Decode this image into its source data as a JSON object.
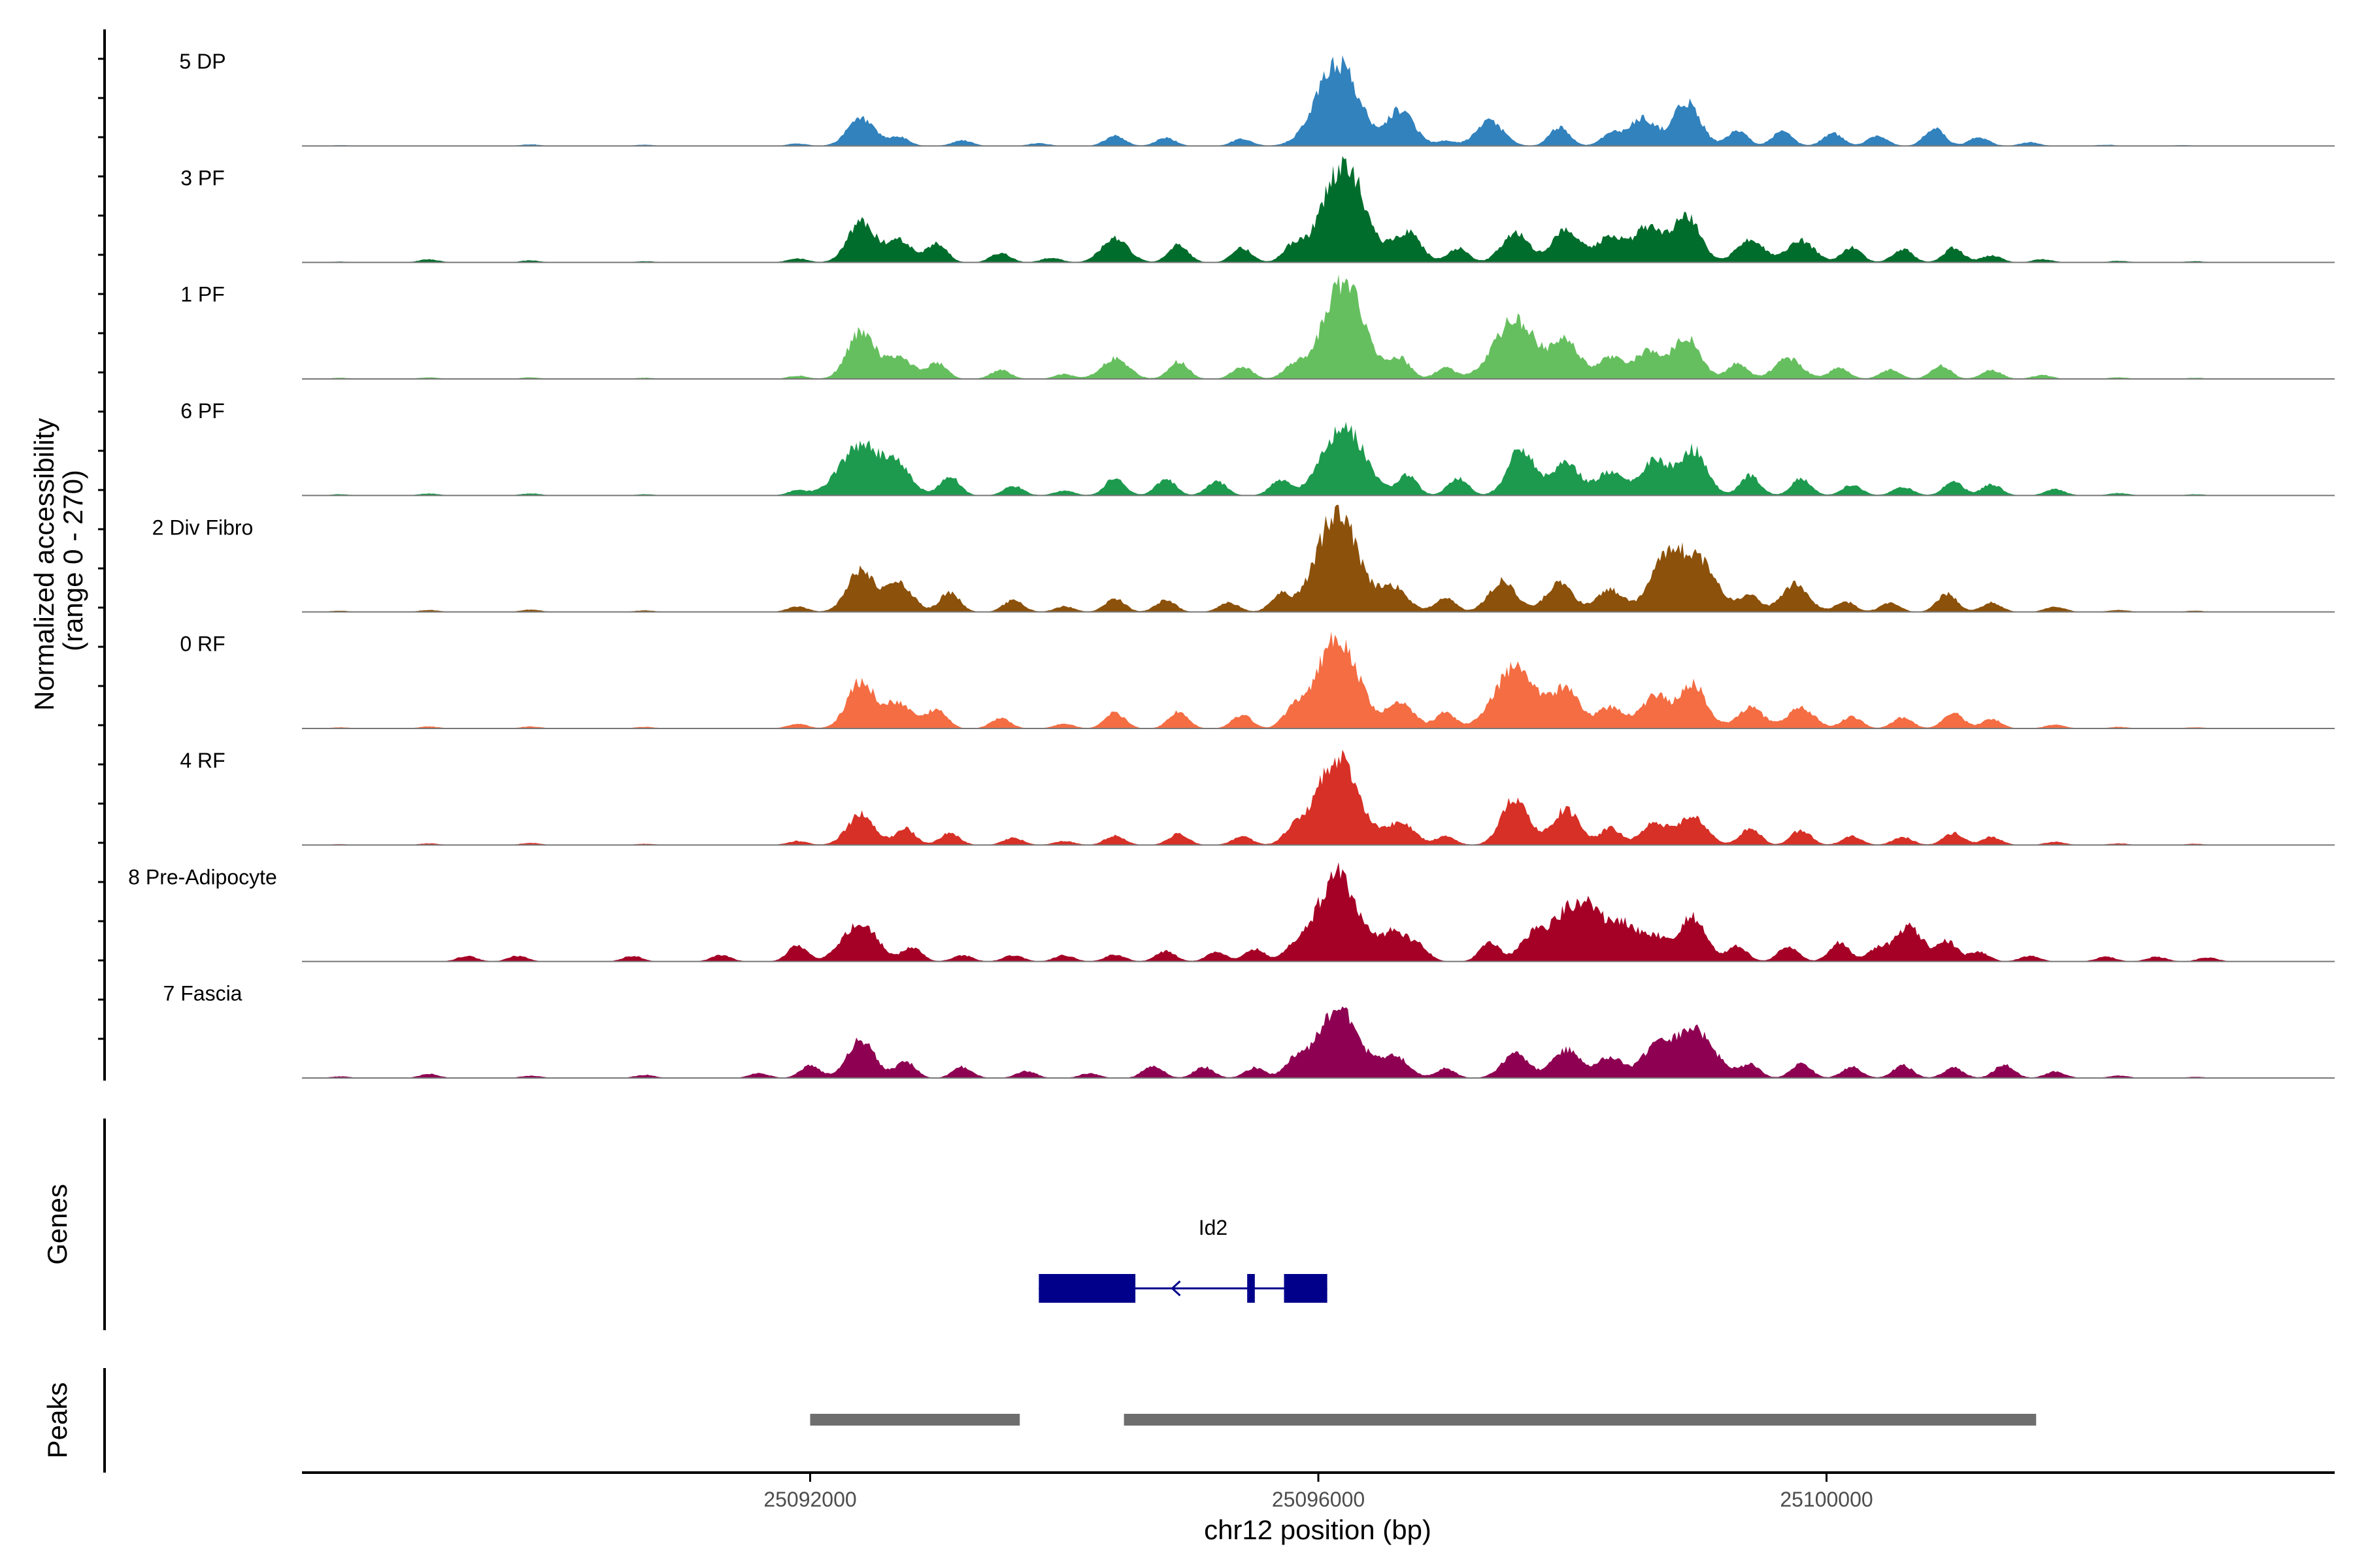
{
  "chart_data": {
    "type": "area",
    "title": "",
    "region": {
      "chromosome": "chr12",
      "start": 25088000,
      "end": 25104000
    },
    "xlabel": "chr12 position (bp)",
    "ylabel_line1": "Normalized accessibility",
    "ylabel_line2": "(range 0 - 270)",
    "ylim": [
      0,
      270
    ],
    "x_ticks": [
      {
        "value": 25092000,
        "label": "25092000"
      },
      {
        "value": 25096000,
        "label": "25096000"
      },
      {
        "value": 25100000,
        "label": "25100000"
      }
    ],
    "tracks": [
      {
        "name": "5 DP",
        "color": "#3182BD",
        "peaks": [
          [
            25088300,
            2
          ],
          [
            25089800,
            4
          ],
          [
            25090700,
            3
          ],
          [
            25091900,
            6
          ],
          [
            25092400,
            68
          ],
          [
            25092700,
            22
          ],
          [
            25093200,
            14
          ],
          [
            25093800,
            7
          ],
          [
            25094400,
            26
          ],
          [
            25094800,
            20
          ],
          [
            25095400,
            18
          ],
          [
            25096150,
            210
          ],
          [
            25096650,
            90
          ],
          [
            25097000,
            12
          ],
          [
            25097350,
            62
          ],
          [
            25097900,
            48
          ],
          [
            25098300,
            30
          ],
          [
            25098550,
            70
          ],
          [
            25098900,
            110
          ],
          [
            25099300,
            38
          ],
          [
            25099650,
            36
          ],
          [
            25100050,
            32
          ],
          [
            25100400,
            26
          ],
          [
            25100850,
            44
          ],
          [
            25101200,
            22
          ],
          [
            25101600,
            9
          ],
          [
            25102200,
            3
          ],
          [
            25102800,
            2
          ]
        ]
      },
      {
        "name": "3 PF",
        "color": "#006D2C",
        "peaks": [
          [
            25088300,
            2
          ],
          [
            25089000,
            8
          ],
          [
            25089800,
            5
          ],
          [
            25090700,
            3
          ],
          [
            25091900,
            10
          ],
          [
            25092400,
            100
          ],
          [
            25092700,
            55
          ],
          [
            25093000,
            48
          ],
          [
            25093500,
            24
          ],
          [
            25093900,
            12
          ],
          [
            25094400,
            60
          ],
          [
            25094900,
            44
          ],
          [
            25095400,
            36
          ],
          [
            25095800,
            40
          ],
          [
            25096200,
            250
          ],
          [
            25096700,
            75
          ],
          [
            25097100,
            36
          ],
          [
            25097550,
            75
          ],
          [
            25097950,
            85
          ],
          [
            25098300,
            65
          ],
          [
            25098600,
            90
          ],
          [
            25098900,
            120
          ],
          [
            25099400,
            60
          ],
          [
            25099800,
            55
          ],
          [
            25100200,
            38
          ],
          [
            25100600,
            34
          ],
          [
            25101000,
            36
          ],
          [
            25101300,
            18
          ],
          [
            25101700,
            8
          ],
          [
            25102300,
            4
          ],
          [
            25102900,
            3
          ]
        ]
      },
      {
        "name": "1 PF",
        "color": "#66BF5F",
        "peaks": [
          [
            25088300,
            3
          ],
          [
            25089000,
            4
          ],
          [
            25089800,
            4
          ],
          [
            25090700,
            3
          ],
          [
            25091900,
            8
          ],
          [
            25092400,
            118
          ],
          [
            25092700,
            56
          ],
          [
            25093000,
            40
          ],
          [
            25093500,
            22
          ],
          [
            25094000,
            12
          ],
          [
            25094400,
            52
          ],
          [
            25094900,
            44
          ],
          [
            25095400,
            32
          ],
          [
            25095800,
            30
          ],
          [
            25096200,
            240
          ],
          [
            25096650,
            48
          ],
          [
            25097000,
            28
          ],
          [
            25097550,
            150
          ],
          [
            25097950,
            90
          ],
          [
            25098300,
            52
          ],
          [
            25098600,
            68
          ],
          [
            25098900,
            105
          ],
          [
            25099300,
            40
          ],
          [
            25099700,
            52
          ],
          [
            25100100,
            28
          ],
          [
            25100500,
            24
          ],
          [
            25100900,
            34
          ],
          [
            25101300,
            22
          ],
          [
            25101700,
            10
          ],
          [
            25102300,
            4
          ],
          [
            25102900,
            3
          ]
        ]
      },
      {
        "name": "6 PF",
        "color": "#1D9A4E",
        "peaks": [
          [
            25088300,
            3
          ],
          [
            25089000,
            5
          ],
          [
            25089800,
            5
          ],
          [
            25090700,
            3
          ],
          [
            25091900,
            12
          ],
          [
            25092400,
            128
          ],
          [
            25092700,
            60
          ],
          [
            25093100,
            48
          ],
          [
            25093600,
            24
          ],
          [
            25094000,
            12
          ],
          [
            25094400,
            44
          ],
          [
            25094800,
            40
          ],
          [
            25095200,
            36
          ],
          [
            25095700,
            38
          ],
          [
            25096200,
            175
          ],
          [
            25096700,
            50
          ],
          [
            25097100,
            45
          ],
          [
            25097600,
            118
          ],
          [
            25097950,
            82
          ],
          [
            25098300,
            60
          ],
          [
            25098650,
            92
          ],
          [
            25098950,
            115
          ],
          [
            25099400,
            50
          ],
          [
            25099800,
            42
          ],
          [
            25100200,
            26
          ],
          [
            25100600,
            22
          ],
          [
            25101000,
            34
          ],
          [
            25101300,
            28
          ],
          [
            25101800,
            16
          ],
          [
            25102300,
            6
          ],
          [
            25102900,
            3
          ]
        ]
      },
      {
        "name": "2 Div Fibro",
        "color": "#8C510A",
        "peaks": [
          [
            25088300,
            3
          ],
          [
            25089000,
            5
          ],
          [
            25089800,
            6
          ],
          [
            25090700,
            4
          ],
          [
            25091900,
            14
          ],
          [
            25092400,
            105
          ],
          [
            25092700,
            70
          ],
          [
            25093100,
            50
          ],
          [
            25093600,
            30
          ],
          [
            25094000,
            14
          ],
          [
            25094400,
            34
          ],
          [
            25094800,
            30
          ],
          [
            25095300,
            24
          ],
          [
            25095700,
            42
          ],
          [
            25096150,
            250
          ],
          [
            25096600,
            60
          ],
          [
            25097000,
            38
          ],
          [
            25097450,
            78
          ],
          [
            25097900,
            72
          ],
          [
            25098300,
            55
          ],
          [
            25098700,
            95
          ],
          [
            25098950,
            145
          ],
          [
            25099400,
            40
          ],
          [
            25099750,
            70
          ],
          [
            25100150,
            26
          ],
          [
            25100500,
            22
          ],
          [
            25100950,
            46
          ],
          [
            25101300,
            24
          ],
          [
            25101800,
            14
          ],
          [
            25102300,
            5
          ],
          [
            25102900,
            3
          ]
        ]
      },
      {
        "name": "0 RF",
        "color": "#F46D43",
        "peaks": [
          [
            25088300,
            3
          ],
          [
            25089000,
            5
          ],
          [
            25089800,
            5
          ],
          [
            25090700,
            4
          ],
          [
            25091900,
            12
          ],
          [
            25092400,
            118
          ],
          [
            25092700,
            66
          ],
          [
            25093000,
            50
          ],
          [
            25093500,
            26
          ],
          [
            25094000,
            12
          ],
          [
            25094400,
            40
          ],
          [
            25094900,
            42
          ],
          [
            25095400,
            34
          ],
          [
            25095800,
            40
          ],
          [
            25096150,
            228
          ],
          [
            25096650,
            62
          ],
          [
            25097000,
            40
          ],
          [
            25097550,
            152
          ],
          [
            25097950,
            95
          ],
          [
            25098300,
            54
          ],
          [
            25098650,
            82
          ],
          [
            25098950,
            110
          ],
          [
            25099400,
            52
          ],
          [
            25099800,
            52
          ],
          [
            25100200,
            30
          ],
          [
            25100600,
            28
          ],
          [
            25101000,
            40
          ],
          [
            25101300,
            24
          ],
          [
            25101800,
            10
          ],
          [
            25102300,
            4
          ],
          [
            25102900,
            3
          ]
        ]
      },
      {
        "name": "4 RF",
        "color": "#D73027",
        "peaks": [
          [
            25088300,
            2
          ],
          [
            25089000,
            4
          ],
          [
            25089800,
            5
          ],
          [
            25090700,
            3
          ],
          [
            25091900,
            10
          ],
          [
            25092400,
            78
          ],
          [
            25092750,
            42
          ],
          [
            25093100,
            30
          ],
          [
            25093600,
            18
          ],
          [
            25094000,
            10
          ],
          [
            25094400,
            24
          ],
          [
            25094900,
            28
          ],
          [
            25095400,
            22
          ],
          [
            25095800,
            32
          ],
          [
            25096150,
            218
          ],
          [
            25096650,
            56
          ],
          [
            25097000,
            22
          ],
          [
            25097550,
            118
          ],
          [
            25097950,
            90
          ],
          [
            25098300,
            44
          ],
          [
            25098650,
            55
          ],
          [
            25098950,
            72
          ],
          [
            25099400,
            44
          ],
          [
            25099800,
            38
          ],
          [
            25100200,
            22
          ],
          [
            25100600,
            20
          ],
          [
            25101000,
            30
          ],
          [
            25101300,
            20
          ],
          [
            25101800,
            8
          ],
          [
            25102300,
            4
          ],
          [
            25102900,
            3
          ]
        ]
      },
      {
        "name": "8 Pre-Adipocyte",
        "color": "#A50026",
        "peaks": [
          [
            25088800,
            0
          ],
          [
            25089300,
            14
          ],
          [
            25089700,
            14
          ],
          [
            25090600,
            14
          ],
          [
            25091300,
            16
          ],
          [
            25091900,
            40
          ],
          [
            25092300,
            52
          ],
          [
            25092450,
            72
          ],
          [
            25092800,
            36
          ],
          [
            25093200,
            16
          ],
          [
            25093600,
            16
          ],
          [
            25094000,
            16
          ],
          [
            25094400,
            18
          ],
          [
            25094800,
            26
          ],
          [
            25095200,
            24
          ],
          [
            25095500,
            32
          ],
          [
            25095800,
            30
          ],
          [
            25096150,
            220
          ],
          [
            25096600,
            74
          ],
          [
            25096800,
            32
          ],
          [
            25097350,
            48
          ],
          [
            25097700,
            72
          ],
          [
            25097950,
            110
          ],
          [
            25098150,
            120
          ],
          [
            25098400,
            90
          ],
          [
            25098650,
            62
          ],
          [
            25098950,
            112
          ],
          [
            25099300,
            38
          ],
          [
            25099700,
            40
          ],
          [
            25100100,
            48
          ],
          [
            25100400,
            32
          ],
          [
            25100650,
            90
          ],
          [
            25100950,
            50
          ],
          [
            25101200,
            24
          ],
          [
            25101600,
            14
          ],
          [
            25102200,
            12
          ],
          [
            25102600,
            12
          ],
          [
            25103000,
            10
          ]
        ]
      },
      {
        "name": "7 Fascia",
        "color": "#8E0152",
        "peaks": [
          [
            25088300,
            4
          ],
          [
            25089000,
            10
          ],
          [
            25089800,
            6
          ],
          [
            25090700,
            8
          ],
          [
            25091600,
            12
          ],
          [
            25092000,
            32
          ],
          [
            25092400,
            98
          ],
          [
            25092750,
            42
          ],
          [
            25093200,
            28
          ],
          [
            25093700,
            18
          ],
          [
            25094200,
            12
          ],
          [
            25094700,
            32
          ],
          [
            25095100,
            28
          ],
          [
            25095500,
            26
          ],
          [
            25095800,
            36
          ],
          [
            25096150,
            178
          ],
          [
            25096600,
            56
          ],
          [
            25097000,
            24
          ],
          [
            25097550,
            60
          ],
          [
            25097950,
            72
          ],
          [
            25098300,
            54
          ],
          [
            25098650,
            68
          ],
          [
            25098950,
            122
          ],
          [
            25099400,
            32
          ],
          [
            25099800,
            38
          ],
          [
            25100200,
            28
          ],
          [
            25100600,
            32
          ],
          [
            25101000,
            26
          ],
          [
            25101400,
            34
          ],
          [
            25101800,
            16
          ],
          [
            25102300,
            6
          ],
          [
            25102900,
            3
          ]
        ]
      }
    ],
    "genes": [
      {
        "name": "Id2",
        "start": 25093800,
        "end": 25096070,
        "strand": "-",
        "color": "#00008B",
        "exons": [
          [
            25093800,
            25094560
          ],
          [
            25095440,
            25095500
          ],
          [
            25095730,
            25096070
          ]
        ]
      }
    ],
    "genes_panel_label": "Genes",
    "peaks_panel_label": "Peaks",
    "peak_regions": [
      [
        25092000,
        25093650
      ],
      [
        25094470,
        25101650
      ]
    ],
    "peak_color": "#6E6E6E"
  }
}
